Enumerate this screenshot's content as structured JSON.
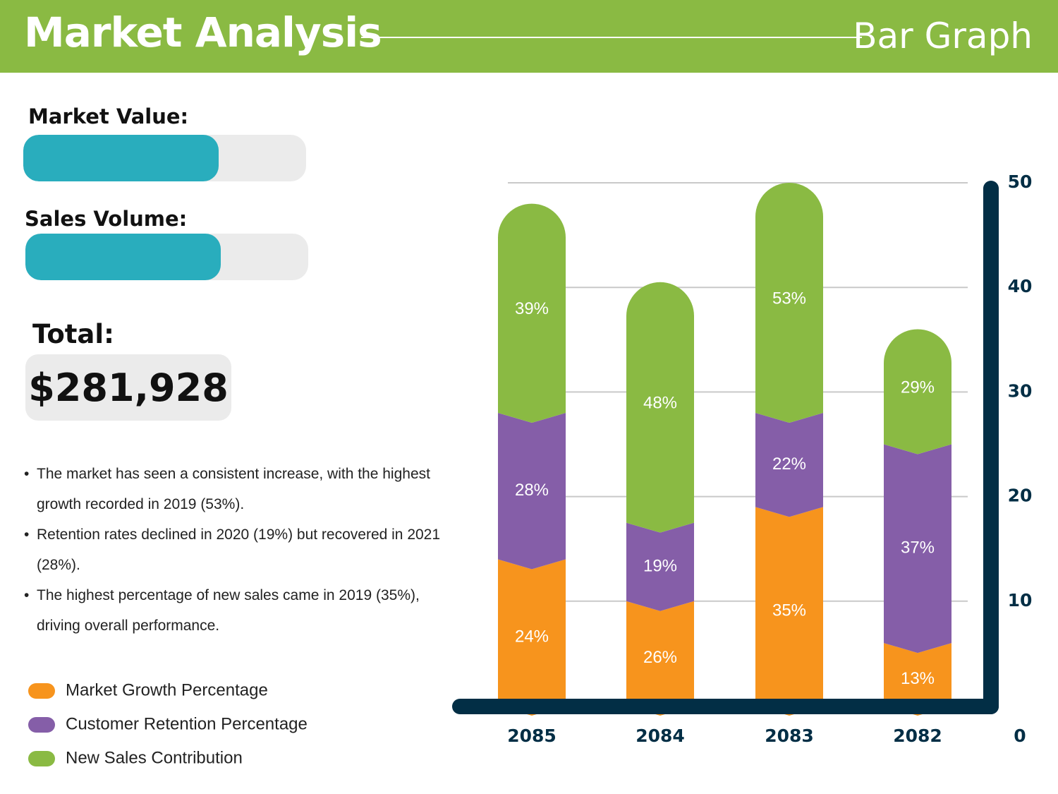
{
  "header": {
    "title": "Market Analysis",
    "subtitle": "Bar Graph"
  },
  "metrics": [
    {
      "label": "Market Value:",
      "value": 69,
      "lim": [
        0,
        100
      ]
    },
    {
      "label": "Sales Volume:",
      "value": 69,
      "lim": [
        0,
        100
      ]
    }
  ],
  "total": {
    "label": "Total:",
    "value": "$281,928"
  },
  "notes": [
    "The market has seen a consistent increase, with the highest growth recorded in 2019 (53%).",
    "Retention rates declined in 2020 (19%) but recovered in 2021 (28%).",
    "The highest percentage of new sales came in 2019 (35%), driving overall performance."
  ],
  "chart_data": {
    "type": "bar",
    "stacked": true,
    "categories": [
      "2085",
      "2084",
      "2083",
      "2082"
    ],
    "series": [
      {
        "name": "Market Growth Percentage",
        "color": "#f7941d",
        "values": [
          14,
          10,
          19,
          6
        ],
        "labels": [
          "24%",
          "26%",
          "35%",
          "13%"
        ]
      },
      {
        "name": "Customer Retention Percentage",
        "color": "#855ea8",
        "values": [
          14,
          7.5,
          9,
          19
        ],
        "labels": [
          "28%",
          "19%",
          "22%",
          "37%"
        ]
      },
      {
        "name": "New Sales Contribution",
        "color": "#8aba43",
        "values": [
          20,
          23,
          22,
          11
        ],
        "labels": [
          "39%",
          "48%",
          "53%",
          "29%"
        ]
      }
    ],
    "ylim": [
      0,
      50
    ],
    "yticks": [
      0,
      10,
      20,
      30,
      40,
      50
    ],
    "grid": true,
    "axis_color": "#022e45"
  }
}
